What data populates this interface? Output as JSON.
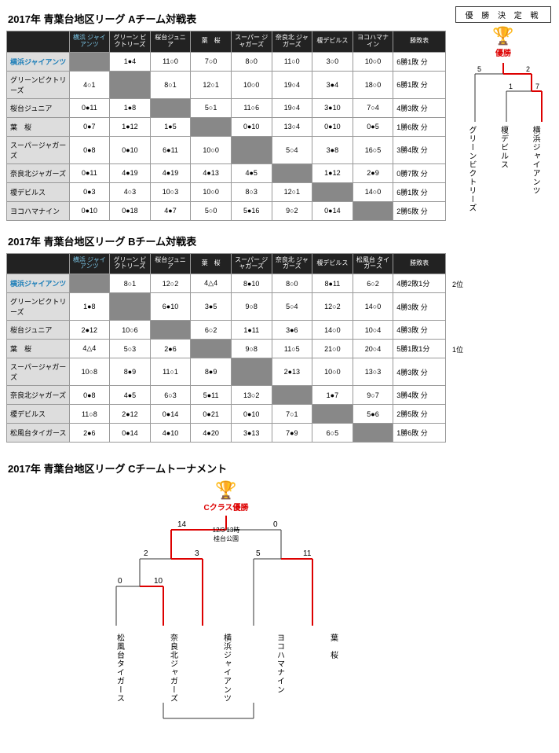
{
  "colors": {
    "header_bg": "#222222",
    "row_header_bg": "#dddddd",
    "diag_bg": "#888888",
    "border": "#999999",
    "highlight_text": "#1a7db8",
    "highlight_header": "#7cc7e8",
    "red": "#d00000",
    "line": "#333333"
  },
  "tableA": {
    "title": "2017年 青葉台地区リーグ Aチーム対戦表",
    "headers": [
      "横浜\nジャイアンツ",
      "グリーン\nビクトリーズ",
      "桜台ジュニア",
      "葉　桜",
      "スーパー\nジャガーズ",
      "奈良北\nジャガーズ",
      "榎デビルス",
      "ヨコハマナイン",
      "勝敗表"
    ],
    "rows": [
      {
        "name": "横浜ジャイアンツ",
        "hl": true,
        "cells": [
          "",
          "1●4",
          "11○0",
          "7○0",
          "8○0",
          "11○0",
          "3○0",
          "10○0"
        ],
        "rec": "6勝1敗 分"
      },
      {
        "name": "グリーンビクトリーズ",
        "cells": [
          "4○1",
          "",
          "8○1",
          "12○1",
          "10○0",
          "19○4",
          "3●4",
          "18○0"
        ],
        "rec": "6勝1敗 分"
      },
      {
        "name": "桜台ジュニア",
        "cells": [
          "0●11",
          "1●8",
          "",
          "5○1",
          "11○6",
          "19○4",
          "3●10",
          "7○4"
        ],
        "rec": "4勝3敗 分"
      },
      {
        "name": "葉　桜",
        "cells": [
          "0●7",
          "1●12",
          "1●5",
          "",
          "0●10",
          "13○4",
          "0●10",
          "0●5"
        ],
        "rec": "1勝6敗 分"
      },
      {
        "name": "スーパージャガーズ",
        "cells": [
          "0●8",
          "0●10",
          "6●11",
          "10○0",
          "",
          "5○4",
          "3●8",
          "16○5"
        ],
        "rec": "3勝4敗 分"
      },
      {
        "name": "奈良北ジャガーズ",
        "cells": [
          "0●11",
          "4●19",
          "4●19",
          "4●13",
          "4●5",
          "",
          "1●12",
          "2●9"
        ],
        "rec": "0勝7敗 分"
      },
      {
        "name": "榎デビルス",
        "cells": [
          "0●3",
          "4○3",
          "10○3",
          "10○0",
          "8○3",
          "12○1",
          "",
          "14○0"
        ],
        "rec": "6勝1敗 分"
      },
      {
        "name": "ヨコハマナイン",
        "cells": [
          "0●10",
          "0●18",
          "4●7",
          "5○0",
          "5●16",
          "9○2",
          "0●14",
          ""
        ],
        "rec": "2勝5敗 分"
      }
    ]
  },
  "tableB": {
    "title": "2017年 青葉台地区リーグ Bチーム対戦表",
    "headers": [
      "横浜\nジャイアンツ",
      "グリーン\nビクトリーズ",
      "桜台ジュニア",
      "葉　桜",
      "スーパー\nジャガーズ",
      "奈良北\nジャガーズ",
      "榎デビルス",
      "松風台\nタイガース",
      "勝敗表"
    ],
    "rows": [
      {
        "name": "横浜ジャイアンツ",
        "hl": true,
        "cells": [
          "",
          "8○1",
          "12○2",
          "4△4",
          "8●10",
          "8○0",
          "8●11",
          "6○2"
        ],
        "rec": "4勝2敗1分",
        "note": "2位"
      },
      {
        "name": "グリーンビクトリーズ",
        "cells": [
          "1●8",
          "",
          "6●10",
          "3●5",
          "9○8",
          "5○4",
          "12○2",
          "14○0"
        ],
        "rec": "4勝3敗 分"
      },
      {
        "name": "桜台ジュニア",
        "cells": [
          "2●12",
          "10○6",
          "",
          "6○2",
          "1●11",
          "3●6",
          "14○0",
          "10○4"
        ],
        "rec": "4勝3敗 分"
      },
      {
        "name": "葉　桜",
        "cells": [
          "4△4",
          "5○3",
          "2●6",
          "",
          "9○8",
          "11○5",
          "21○0",
          "20○4"
        ],
        "rec": "5勝1敗1分",
        "note": "1位"
      },
      {
        "name": "スーパージャガーズ",
        "cells": [
          "10○8",
          "8●9",
          "11○1",
          "8●9",
          "",
          "2●13",
          "10○0",
          "13○3"
        ],
        "rec": "4勝3敗 分"
      },
      {
        "name": "奈良北ジャガーズ",
        "cells": [
          "0●8",
          "4●5",
          "6○3",
          "5●11",
          "13○2",
          "",
          "1●7",
          "9○7"
        ],
        "rec": "3勝4敗 分"
      },
      {
        "name": "榎デビルス",
        "cells": [
          "11○8",
          "2●12",
          "0●14",
          "0●21",
          "0●10",
          "7○1",
          "",
          "5●6"
        ],
        "rec": "2勝5敗 分"
      },
      {
        "name": "松風台タイガース",
        "cells": [
          "2●6",
          "0●14",
          "4●10",
          "4●20",
          "3●13",
          "7●9",
          "6○5",
          ""
        ],
        "rec": "1勝6敗 分"
      }
    ]
  },
  "topBracket": {
    "box_title": "優 勝 決 定 戦",
    "champ_label": "優勝",
    "scores": {
      "left_sf": "5",
      "right_sf": "2",
      "left_f": "1",
      "right_f": "7"
    },
    "teams": [
      "グリーンビクトリーズ",
      "榎デビルス",
      "横浜ジャイアンツ"
    ]
  },
  "tableC": {
    "title": "2017年 青葉台地区リーグ Cチームトーナメント",
    "champ_label": "Cクラス優勝",
    "note1": "12/3 13時",
    "note2": "桂台公園",
    "scores": {
      "final_l": "14",
      "final_r": "0",
      "sf1_l": "2",
      "sf1_r": "3",
      "sf2_l": "5",
      "sf2_r": "11",
      "qf_l": "0",
      "qf_r": "10"
    },
    "teams": [
      "松風台タイガース",
      "奈良北ジャガーズ",
      "横浜ジャイアンツ",
      "ヨコハマナイン",
      "葉　桜"
    ]
  }
}
